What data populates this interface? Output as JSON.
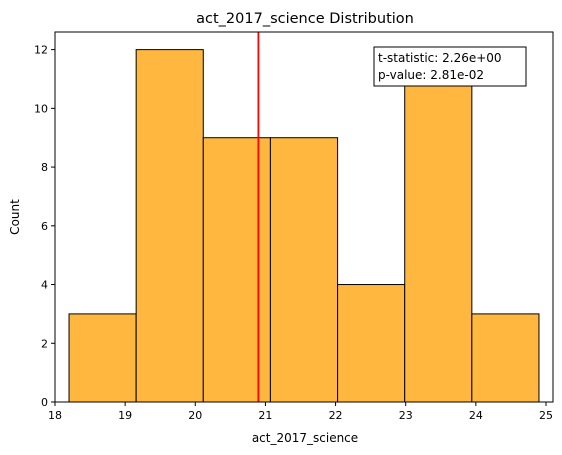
{
  "chart_data": {
    "type": "bar",
    "title": "act_2017_science Distribution",
    "xlabel": "act_2017_science",
    "ylabel": "Count",
    "bins": [
      {
        "start": 18.2,
        "end": 19.157,
        "count": 3
      },
      {
        "start": 19.157,
        "end": 20.114,
        "count": 12
      },
      {
        "start": 20.114,
        "end": 21.071,
        "count": 9
      },
      {
        "start": 21.071,
        "end": 22.029,
        "count": 9
      },
      {
        "start": 22.029,
        "end": 22.986,
        "count": 4
      },
      {
        "start": 22.986,
        "end": 23.943,
        "count": 11
      },
      {
        "start": 23.943,
        "end": 24.9,
        "count": 3
      }
    ],
    "xlim": [
      18.0,
      25.1
    ],
    "ylim": [
      0,
      12.6
    ],
    "x_ticks": [
      18,
      19,
      20,
      21,
      22,
      23,
      24,
      25
    ],
    "y_ticks": [
      0,
      2,
      4,
      6,
      8,
      10,
      12
    ],
    "mean_line": {
      "x": 20.9,
      "color": "#ff0000"
    },
    "bar_color": "#ffb740",
    "bar_edge_color": "#000000",
    "stats_box": {
      "line1": "t-statistic:  2.26e+00",
      "line2": "p-value:  2.81e-02",
      "placement": "top-right"
    }
  }
}
